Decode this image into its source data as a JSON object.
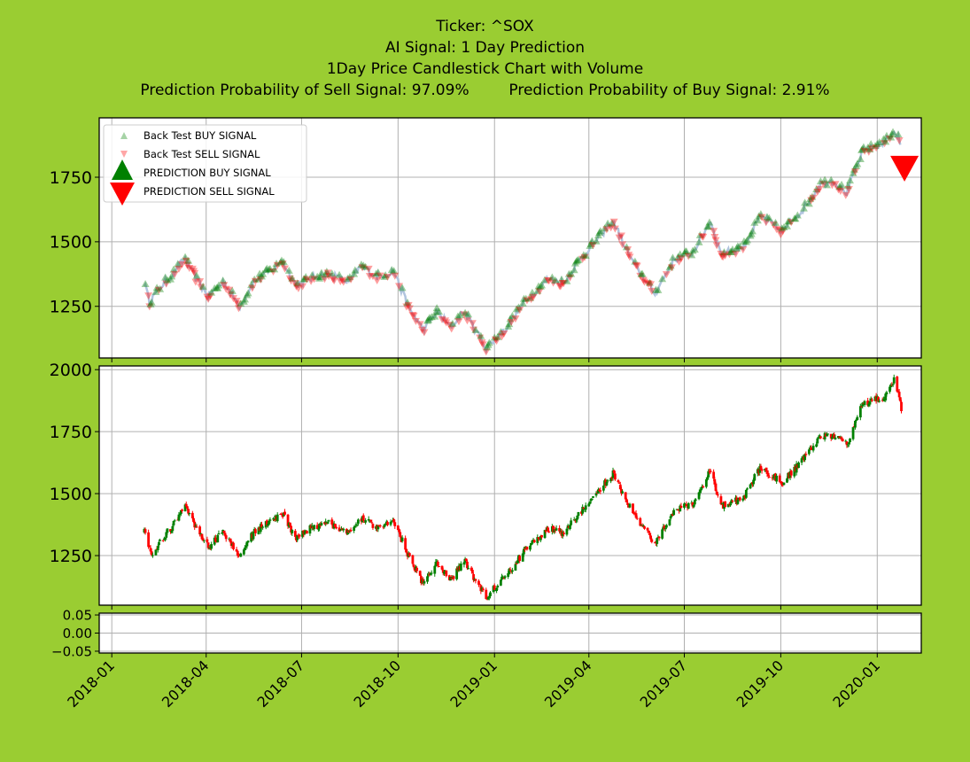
{
  "titles": {
    "line1": "Ticker: ^SOX",
    "line2": "AI Signal: 1 Day Prediction",
    "line3": "1Day Price Candlestick Chart with Volume",
    "line4a": "Prediction Probability of Sell Signal: 97.09%",
    "line4b": "Prediction Probability of Buy Signal: 2.91%"
  },
  "colors": {
    "background": "#9acd32",
    "buy": "#008000",
    "sell": "#ff0000",
    "price_line": "#b0c4de",
    "grid": "#b0b0b0"
  },
  "chart_data": [
    {
      "type": "scatter",
      "panel": "signals",
      "legend": [
        "Back Test BUY SIGNAL",
        "Back Test SELL SIGNAL",
        "PREDICTION BUY SIGNAL",
        "PREDICTION SELL SIGNAL"
      ],
      "legend_placement": "top-left",
      "grid": true,
      "ylim": [
        1050,
        1980
      ],
      "yticks": [
        1250,
        1500,
        1750
      ],
      "ytick_labels": [
        "1250",
        "1500",
        "1750"
      ],
      "price_path": [
        [
          "2018-02-01",
          1340
        ],
        [
          "2018-02-06",
          1265
        ],
        [
          "2018-02-15",
          1320
        ],
        [
          "2018-03-01",
          1380
        ],
        [
          "2018-03-12",
          1435
        ],
        [
          "2018-03-22",
          1360
        ],
        [
          "2018-04-03",
          1290
        ],
        [
          "2018-04-18",
          1345
        ],
        [
          "2018-05-03",
          1250
        ],
        [
          "2018-05-17",
          1350
        ],
        [
          "2018-06-06",
          1400
        ],
        [
          "2018-06-12",
          1430
        ],
        [
          "2018-06-26",
          1330
        ],
        [
          "2018-07-10",
          1360
        ],
        [
          "2018-07-26",
          1375
        ],
        [
          "2018-08-15",
          1345
        ],
        [
          "2018-08-27",
          1405
        ],
        [
          "2018-09-11",
          1365
        ],
        [
          "2018-09-27",
          1385
        ],
        [
          "2018-10-11",
          1245
        ],
        [
          "2018-10-25",
          1160
        ],
        [
          "2018-11-07",
          1230
        ],
        [
          "2018-11-20",
          1170
        ],
        [
          "2018-12-03",
          1230
        ],
        [
          "2018-12-24",
          1090
        ],
        [
          "2019-01-10",
          1155
        ],
        [
          "2019-01-30",
          1270
        ],
        [
          "2019-02-21",
          1355
        ],
        [
          "2019-03-08",
          1340
        ],
        [
          "2019-03-21",
          1420
        ],
        [
          "2019-04-12",
          1525
        ],
        [
          "2019-04-24",
          1580
        ],
        [
          "2019-05-13",
          1420
        ],
        [
          "2019-06-03",
          1300
        ],
        [
          "2019-06-21",
          1430
        ],
        [
          "2019-07-09",
          1460
        ],
        [
          "2019-07-26",
          1580
        ],
        [
          "2019-08-05",
          1450
        ],
        [
          "2019-08-26",
          1480
        ],
        [
          "2019-09-12",
          1600
        ],
        [
          "2019-10-02",
          1540
        ],
        [
          "2019-10-25",
          1640
        ],
        [
          "2019-11-08",
          1725
        ],
        [
          "2019-11-20",
          1735
        ],
        [
          "2019-12-03",
          1690
        ],
        [
          "2019-12-18",
          1850
        ],
        [
          "2020-01-08",
          1885
        ],
        [
          "2020-01-17",
          1930
        ],
        [
          "2020-01-21",
          1905
        ],
        [
          "2020-01-24",
          1860
        ]
      ],
      "prediction": {
        "date": "2020-01-27",
        "value": 1785,
        "signal": "SELL"
      }
    },
    {
      "type": "candlestick",
      "panel": "price",
      "grid": true,
      "ylim": [
        1050,
        2015
      ],
      "yticks": [
        1250,
        1500,
        1750,
        2000
      ],
      "ytick_labels": [
        "1250",
        "1500",
        "1750",
        "2000"
      ],
      "series_path": [
        [
          "2018-02-01",
          1345
        ],
        [
          "2018-02-08",
          1240
        ],
        [
          "2018-02-20",
          1330
        ],
        [
          "2018-03-01",
          1375
        ],
        [
          "2018-03-12",
          1445
        ],
        [
          "2018-03-22",
          1360
        ],
        [
          "2018-04-03",
          1285
        ],
        [
          "2018-04-18",
          1345
        ],
        [
          "2018-05-03",
          1245
        ],
        [
          "2018-05-17",
          1350
        ],
        [
          "2018-06-06",
          1400
        ],
        [
          "2018-06-12",
          1425
        ],
        [
          "2018-06-26",
          1320
        ],
        [
          "2018-07-10",
          1360
        ],
        [
          "2018-07-26",
          1380
        ],
        [
          "2018-08-15",
          1340
        ],
        [
          "2018-08-27",
          1400
        ],
        [
          "2018-09-11",
          1365
        ],
        [
          "2018-09-27",
          1385
        ],
        [
          "2018-10-11",
          1250
        ],
        [
          "2018-10-25",
          1130
        ],
        [
          "2018-11-07",
          1220
        ],
        [
          "2018-11-20",
          1150
        ],
        [
          "2018-12-03",
          1230
        ],
        [
          "2018-12-24",
          1080
        ],
        [
          "2019-01-10",
          1160
        ],
        [
          "2019-01-30",
          1270
        ],
        [
          "2019-02-21",
          1360
        ],
        [
          "2019-03-08",
          1340
        ],
        [
          "2019-03-21",
          1410
        ],
        [
          "2019-04-12",
          1520
        ],
        [
          "2019-04-24",
          1580
        ],
        [
          "2019-05-13",
          1420
        ],
        [
          "2019-06-03",
          1300
        ],
        [
          "2019-06-21",
          1430
        ],
        [
          "2019-07-09",
          1460
        ],
        [
          "2019-07-26",
          1595
        ],
        [
          "2019-08-05",
          1450
        ],
        [
          "2019-08-26",
          1480
        ],
        [
          "2019-09-12",
          1610
        ],
        [
          "2019-10-02",
          1540
        ],
        [
          "2019-10-25",
          1650
        ],
        [
          "2019-11-08",
          1730
        ],
        [
          "2019-11-20",
          1735
        ],
        [
          "2019-12-03",
          1700
        ],
        [
          "2019-12-18",
          1860
        ],
        [
          "2020-01-08",
          1890
        ],
        [
          "2020-01-17",
          1960
        ],
        [
          "2020-01-21",
          1900
        ],
        [
          "2020-01-24",
          1840
        ],
        [
          "2020-01-27",
          1800
        ]
      ]
    },
    {
      "type": "bar",
      "panel": "volume",
      "grid": true,
      "ylim": [
        -0.055,
        0.055
      ],
      "yticks": [
        0.05,
        0.0,
        -0.05
      ],
      "ytick_labels": [
        "0.05",
        "0.00",
        "−0.05"
      ],
      "xticks": [
        "2018-01-01",
        "2018-04-01",
        "2018-07-01",
        "2018-10-01",
        "2019-01-01",
        "2019-04-01",
        "2019-07-01",
        "2019-10-01",
        "2020-01-01"
      ],
      "xtick_labels": [
        "2018-01",
        "2018-04",
        "2018-07",
        "2018-10",
        "2019-01",
        "2019-04",
        "2019-07",
        "2019-10",
        "2020-01"
      ]
    }
  ]
}
